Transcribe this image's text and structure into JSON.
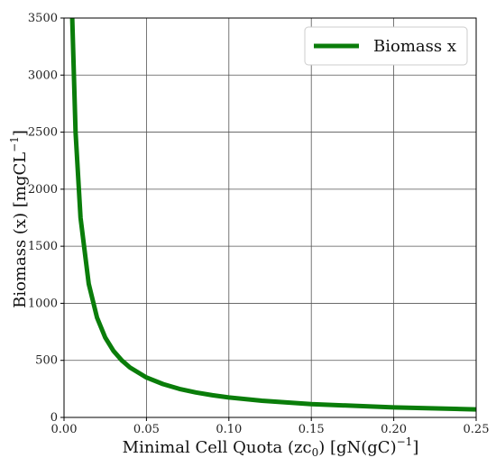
{
  "chart_data": {
    "type": "line",
    "xlabel_main": "Minimal Cell Quota (zc",
    "xlabel_sub": "0",
    "xlabel_tail": ") [gN(gC)",
    "xlabel_sup": "−1",
    "xlabel_end": "]",
    "ylabel_main": "Biomass (x) [mgCL",
    "ylabel_sup": "−1",
    "ylabel_end": "]",
    "xlim": [
      0,
      0.25
    ],
    "ylim": [
      0,
      3500
    ],
    "xticks": [
      "0.00",
      "0.05",
      "0.10",
      "0.15",
      "0.20",
      "0.25"
    ],
    "xtick_values": [
      0,
      0.05,
      0.1,
      0.15,
      0.2,
      0.25
    ],
    "yticks": [
      "0",
      "500",
      "1000",
      "1500",
      "2000",
      "2500",
      "3000",
      "3500"
    ],
    "ytick_values": [
      0,
      500,
      1000,
      1500,
      2000,
      2500,
      3000,
      3500
    ],
    "grid": true,
    "legend_position": "top-right",
    "series": [
      {
        "name": "Biomass x",
        "color": "#0a7d0a",
        "x": [
          0.005,
          0.007,
          0.01,
          0.015,
          0.02,
          0.025,
          0.03,
          0.035,
          0.04,
          0.05,
          0.06,
          0.07,
          0.08,
          0.09,
          0.1,
          0.12,
          0.15,
          0.2,
          0.25
        ],
        "y": [
          3500,
          2500,
          1750,
          1170,
          875,
          700,
          583,
          500,
          438,
          350,
          292,
          250,
          219,
          194,
          175,
          146,
          117,
          88,
          70
        ]
      }
    ]
  }
}
